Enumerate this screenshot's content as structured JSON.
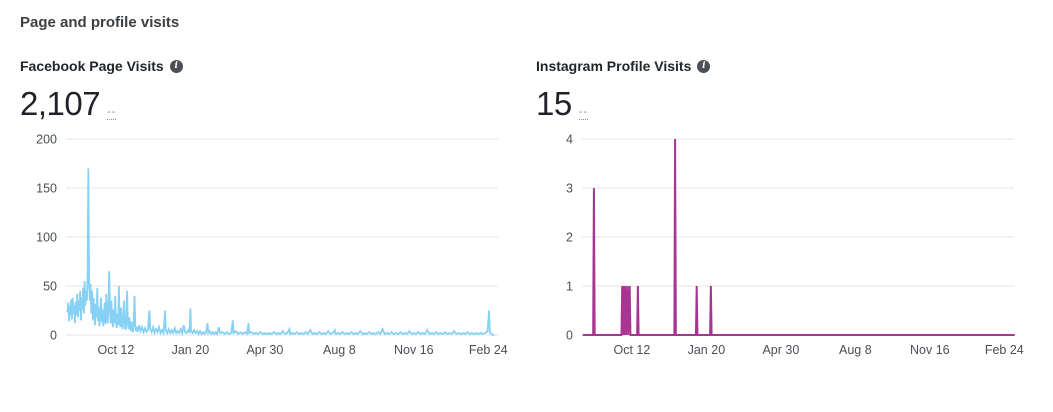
{
  "page": {
    "title": "Page and profile visits"
  },
  "cards": [
    {
      "title": "Facebook Page Visits",
      "info_icon": "info-icon",
      "info_glyph": "i",
      "value": "2,107",
      "delta": "--"
    },
    {
      "title": "Instagram Profile Visits",
      "info_icon": "info-icon",
      "info_glyph": "i",
      "value": "15",
      "delta": "--"
    }
  ],
  "chart_style": {
    "gridline_color": "#e4e6eb",
    "tick_text_color": "#4b4f56",
    "background": "#ffffff"
  },
  "chart_data": [
    {
      "type": "line",
      "title": "Facebook Page Visits",
      "total_label": "2,107",
      "color": "#87d1f5",
      "stroke_width": 1.8,
      "ylim": [
        0,
        200
      ],
      "y_ticks": [
        0,
        50,
        100,
        150,
        200
      ],
      "grid": true,
      "legend": "none",
      "x_domain_days": [
        0,
        580
      ],
      "x_ticks": [
        {
          "label": "Oct 12",
          "day": 67
        },
        {
          "label": "Jan 20",
          "day": 167
        },
        {
          "label": "Apr 30",
          "day": 267
        },
        {
          "label": "Aug 8",
          "day": 367
        },
        {
          "label": "Nov 16",
          "day": 467
        },
        {
          "label": "Feb 24",
          "day": 567
        }
      ],
      "points": [
        [
          2,
          24
        ],
        [
          3,
          33
        ],
        [
          4,
          14
        ],
        [
          5,
          30
        ],
        [
          6,
          20
        ],
        [
          7,
          36
        ],
        [
          8,
          16
        ],
        [
          9,
          38
        ],
        [
          10,
          22
        ],
        [
          11,
          30
        ],
        [
          12,
          12
        ],
        [
          13,
          34
        ],
        [
          14,
          20
        ],
        [
          15,
          42
        ],
        [
          16,
          18
        ],
        [
          17,
          35
        ],
        [
          18,
          25
        ],
        [
          19,
          45
        ],
        [
          20,
          15
        ],
        [
          21,
          38
        ],
        [
          22,
          26
        ],
        [
          23,
          48
        ],
        [
          24,
          22
        ],
        [
          25,
          55
        ],
        [
          26,
          30
        ],
        [
          27,
          45
        ],
        [
          28,
          35
        ],
        [
          29,
          60
        ],
        [
          30,
          170
        ],
        [
          31,
          55
        ],
        [
          32,
          35
        ],
        [
          33,
          52
        ],
        [
          34,
          22
        ],
        [
          35,
          45
        ],
        [
          36,
          15
        ],
        [
          37,
          38
        ],
        [
          38,
          25
        ],
        [
          39,
          10
        ],
        [
          40,
          32
        ],
        [
          41,
          18
        ],
        [
          42,
          48
        ],
        [
          43,
          14
        ],
        [
          44,
          28
        ],
        [
          45,
          9
        ],
        [
          46,
          24
        ],
        [
          47,
          38
        ],
        [
          48,
          13
        ],
        [
          49,
          26
        ],
        [
          50,
          9
        ],
        [
          51,
          20
        ],
        [
          52,
          33
        ],
        [
          53,
          11
        ],
        [
          54,
          42
        ],
        [
          55,
          18
        ],
        [
          56,
          12
        ],
        [
          57,
          30
        ],
        [
          58,
          65
        ],
        [
          59,
          28
        ],
        [
          60,
          12
        ],
        [
          61,
          35
        ],
        [
          62,
          15
        ],
        [
          63,
          8
        ],
        [
          64,
          26
        ],
        [
          65,
          12
        ],
        [
          66,
          40
        ],
        [
          67,
          16
        ],
        [
          68,
          7
        ],
        [
          69,
          22
        ],
        [
          70,
          10
        ],
        [
          71,
          50
        ],
        [
          72,
          15
        ],
        [
          73,
          8
        ],
        [
          74,
          28
        ],
        [
          75,
          12
        ],
        [
          76,
          6
        ],
        [
          77,
          20
        ],
        [
          78,
          35
        ],
        [
          79,
          10
        ],
        [
          80,
          5
        ],
        [
          81,
          15
        ],
        [
          82,
          45
        ],
        [
          83,
          12
        ],
        [
          84,
          6
        ],
        [
          85,
          18
        ],
        [
          86,
          8
        ],
        [
          87,
          4
        ],
        [
          88,
          14
        ],
        [
          89,
          7
        ],
        [
          90,
          3
        ],
        [
          91,
          12
        ],
        [
          92,
          40
        ],
        [
          93,
          10
        ],
        [
          94,
          4
        ],
        [
          95,
          8
        ],
        [
          96,
          3
        ],
        [
          98,
          10
        ],
        [
          100,
          4
        ],
        [
          102,
          8
        ],
        [
          104,
          3
        ],
        [
          106,
          7
        ],
        [
          108,
          3
        ],
        [
          110,
          5
        ],
        [
          112,
          25
        ],
        [
          113,
          6
        ],
        [
          115,
          3
        ],
        [
          117,
          8
        ],
        [
          119,
          2
        ],
        [
          121,
          6
        ],
        [
          123,
          3
        ],
        [
          125,
          8
        ],
        [
          127,
          2
        ],
        [
          129,
          5
        ],
        [
          131,
          2
        ],
        [
          133,
          25
        ],
        [
          134,
          5
        ],
        [
          136,
          2
        ],
        [
          138,
          6
        ],
        [
          140,
          2
        ],
        [
          142,
          5
        ],
        [
          144,
          2
        ],
        [
          146,
          7
        ],
        [
          148,
          2
        ],
        [
          150,
          4
        ],
        [
          152,
          2
        ],
        [
          154,
          6
        ],
        [
          156,
          2
        ],
        [
          158,
          10
        ],
        [
          160,
          3
        ],
        [
          162,
          2
        ],
        [
          164,
          5
        ],
        [
          166,
          2
        ],
        [
          167,
          27
        ],
        [
          168,
          4
        ],
        [
          170,
          2
        ],
        [
          172,
          5
        ],
        [
          174,
          2
        ],
        [
          176,
          4
        ],
        [
          178,
          1
        ],
        [
          180,
          4
        ],
        [
          182,
          1
        ],
        [
          184,
          3
        ],
        [
          186,
          1
        ],
        [
          188,
          3
        ],
        [
          190,
          12
        ],
        [
          191,
          2
        ],
        [
          193,
          4
        ],
        [
          195,
          1
        ],
        [
          197,
          3
        ],
        [
          199,
          1
        ],
        [
          201,
          3
        ],
        [
          203,
          1
        ],
        [
          205,
          8
        ],
        [
          207,
          2
        ],
        [
          210,
          3
        ],
        [
          213,
          1
        ],
        [
          216,
          3
        ],
        [
          219,
          1
        ],
        [
          222,
          2
        ],
        [
          224,
          15
        ],
        [
          225,
          2
        ],
        [
          228,
          4
        ],
        [
          231,
          1
        ],
        [
          234,
          3
        ],
        [
          237,
          1
        ],
        [
          240,
          3
        ],
        [
          243,
          1
        ],
        [
          245,
          12
        ],
        [
          246,
          2
        ],
        [
          249,
          3
        ],
        [
          252,
          1
        ],
        [
          255,
          2
        ],
        [
          258,
          1
        ],
        [
          261,
          3
        ],
        [
          264,
          1
        ],
        [
          267,
          2
        ],
        [
          270,
          1
        ],
        [
          273,
          2
        ],
        [
          276,
          1
        ],
        [
          279,
          3
        ],
        [
          282,
          1
        ],
        [
          285,
          2
        ],
        [
          288,
          1
        ],
        [
          291,
          4
        ],
        [
          294,
          1
        ],
        [
          297,
          2
        ],
        [
          300,
          6
        ],
        [
          301,
          1
        ],
        [
          304,
          2
        ],
        [
          307,
          1
        ],
        [
          310,
          3
        ],
        [
          313,
          1
        ],
        [
          316,
          2
        ],
        [
          319,
          1
        ],
        [
          322,
          3
        ],
        [
          325,
          1
        ],
        [
          328,
          5
        ],
        [
          331,
          1
        ],
        [
          334,
          2
        ],
        [
          337,
          1
        ],
        [
          340,
          3
        ],
        [
          343,
          1
        ],
        [
          346,
          2
        ],
        [
          349,
          1
        ],
        [
          352,
          4
        ],
        [
          355,
          1
        ],
        [
          358,
          2
        ],
        [
          361,
          5
        ],
        [
          362,
          1
        ],
        [
          365,
          2
        ],
        [
          368,
          1
        ],
        [
          371,
          3
        ],
        [
          374,
          1
        ],
        [
          377,
          2
        ],
        [
          380,
          1
        ],
        [
          383,
          3
        ],
        [
          386,
          1
        ],
        [
          389,
          2
        ],
        [
          392,
          1
        ],
        [
          395,
          4
        ],
        [
          398,
          1
        ],
        [
          401,
          2
        ],
        [
          404,
          1
        ],
        [
          407,
          3
        ],
        [
          410,
          1
        ],
        [
          413,
          2
        ],
        [
          416,
          1
        ],
        [
          419,
          3
        ],
        [
          422,
          1
        ],
        [
          425,
          6
        ],
        [
          428,
          1
        ],
        [
          431,
          2
        ],
        [
          434,
          1
        ],
        [
          437,
          3
        ],
        [
          440,
          1
        ],
        [
          443,
          2
        ],
        [
          446,
          1
        ],
        [
          449,
          3
        ],
        [
          452,
          1
        ],
        [
          455,
          2
        ],
        [
          458,
          1
        ],
        [
          461,
          4
        ],
        [
          464,
          1
        ],
        [
          467,
          2
        ],
        [
          470,
          1
        ],
        [
          473,
          3
        ],
        [
          476,
          1
        ],
        [
          479,
          2
        ],
        [
          482,
          1
        ],
        [
          485,
          5
        ],
        [
          488,
          1
        ],
        [
          491,
          2
        ],
        [
          494,
          1
        ],
        [
          497,
          3
        ],
        [
          500,
          1
        ],
        [
          503,
          2
        ],
        [
          506,
          1
        ],
        [
          509,
          3
        ],
        [
          512,
          1
        ],
        [
          515,
          2
        ],
        [
          518,
          1
        ],
        [
          521,
          4
        ],
        [
          524,
          1
        ],
        [
          527,
          2
        ],
        [
          530,
          1
        ],
        [
          533,
          2
        ],
        [
          536,
          1
        ],
        [
          539,
          3
        ],
        [
          542,
          1
        ],
        [
          545,
          2
        ],
        [
          548,
          1
        ],
        [
          551,
          2
        ],
        [
          554,
          1
        ],
        [
          557,
          2
        ],
        [
          560,
          1
        ],
        [
          563,
          2
        ],
        [
          566,
          4
        ],
        [
          568,
          25
        ],
        [
          569,
          3
        ],
        [
          571,
          1
        ],
        [
          574,
          0
        ]
      ]
    },
    {
      "type": "line",
      "title": "Instagram Profile Visits",
      "total_label": "15",
      "color": "#aa3492",
      "stroke_width": 2,
      "ylim": [
        0,
        4
      ],
      "y_ticks": [
        0,
        1,
        2,
        3,
        4
      ],
      "grid": true,
      "legend": "none",
      "x_domain_days": [
        0,
        580
      ],
      "x_ticks": [
        {
          "label": "Oct 12",
          "day": 67
        },
        {
          "label": "Jan 20",
          "day": 167
        },
        {
          "label": "Apr 30",
          "day": 267
        },
        {
          "label": "Aug 8",
          "day": 367
        },
        {
          "label": "Nov 16",
          "day": 467
        },
        {
          "label": "Feb 24",
          "day": 567
        }
      ],
      "points": [
        [
          2,
          0
        ],
        [
          15,
          0
        ],
        [
          16,
          3
        ],
        [
          17,
          0
        ],
        [
          53,
          0
        ],
        [
          54,
          1
        ],
        [
          55,
          0
        ],
        [
          56,
          1
        ],
        [
          57,
          0
        ],
        [
          58,
          1
        ],
        [
          59,
          0
        ],
        [
          61,
          1
        ],
        [
          62,
          0
        ],
        [
          64,
          1
        ],
        [
          65,
          0
        ],
        [
          74,
          0
        ],
        [
          75,
          1
        ],
        [
          76,
          0
        ],
        [
          124,
          0
        ],
        [
          125,
          4
        ],
        [
          126,
          0
        ],
        [
          153,
          0
        ],
        [
          154,
          1
        ],
        [
          155,
          0
        ],
        [
          172,
          0
        ],
        [
          173,
          1
        ],
        [
          174,
          0
        ],
        [
          580,
          0
        ]
      ]
    }
  ]
}
